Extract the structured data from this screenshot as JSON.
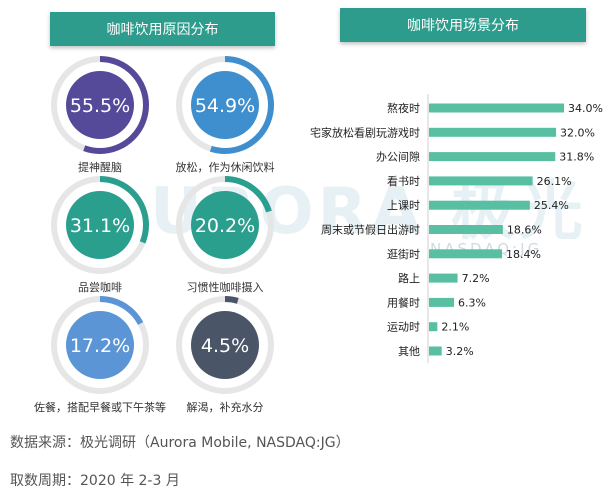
{
  "chart_data": [
    {
      "type": "pie",
      "title": "咖啡饮用原因分布",
      "items": [
        {
          "label": "提神醒脑",
          "value": 55.5,
          "display": "55.5%",
          "color": "#554a9a"
        },
        {
          "label": "放松，作为休闲饮料",
          "value": 54.9,
          "display": "54.9%",
          "color": "#3f8fcf"
        },
        {
          "label": "品尝咖啡",
          "value": 31.1,
          "display": "31.1%",
          "color": "#2a9f8e"
        },
        {
          "label": "习惯性咖啡摄入",
          "value": 20.2,
          "display": "20.2%",
          "color": "#2a9f8e"
        },
        {
          "label": "佐餐，搭配早餐或下午茶等",
          "value": 17.2,
          "display": "17.2%",
          "color": "#5c95d6"
        },
        {
          "label": "解渴，补充水分",
          "value": 4.5,
          "display": "4.5%",
          "color": "#4a5668"
        }
      ]
    },
    {
      "type": "bar",
      "orientation": "horizontal",
      "title": "咖啡饮用场景分布",
      "bar_color": "#58bfa3",
      "categories": [
        "熬夜时",
        "宅家放松看剧玩游戏时",
        "办公间隙",
        "看书时",
        "上课时",
        "周末或节假日出游时",
        "逛街时",
        "路上",
        "用餐时",
        "运动时",
        "其他"
      ],
      "values": [
        34.0,
        32.0,
        31.8,
        26.1,
        25.4,
        18.6,
        18.4,
        7.2,
        6.3,
        2.1,
        3.2
      ],
      "labels": [
        "34.0%",
        "32.0%",
        "31.8%",
        "26.1%",
        "25.4%",
        "18.6%",
        "18.4%",
        "7.2%",
        "6.3%",
        "2.1%",
        "3.2%"
      ],
      "xlim": [
        0,
        34
      ]
    }
  ],
  "watermark": {
    "text": "URORA 极光",
    "sub": "NASDAQ:JG"
  },
  "footer": {
    "source": "数据来源：极光调研（Aurora Mobile, NASDAQ:JG）",
    "period": "取数周期：2020 年 2-3 月"
  }
}
